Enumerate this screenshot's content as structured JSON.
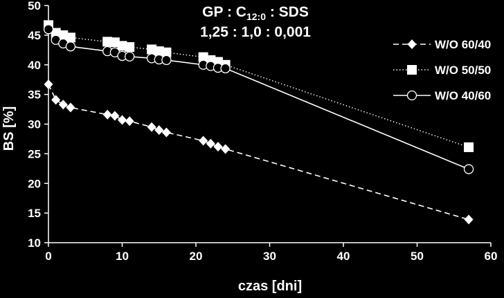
{
  "chart_data": {
    "type": "line",
    "title_line1_main": "GP : C",
    "title_line1_sub": "12:0",
    "title_line1_tail": " : SDS",
    "title_line2": "1,25 : 1,0 : 0,001",
    "xlabel": "czas [dni]",
    "ylabel": "BS [%]",
    "xlim": [
      0,
      60
    ],
    "ylim": [
      10,
      50
    ],
    "xticks": [
      "0",
      "10",
      "20",
      "30",
      "40",
      "50",
      "60"
    ],
    "yticks": [
      "10",
      "15",
      "20",
      "25",
      "30",
      "35",
      "40",
      "45",
      "50"
    ],
    "grid": false,
    "legend_position": "right",
    "series": [
      {
        "name": "W/O 60/40",
        "marker": "diamond",
        "line_style": "dashed",
        "x": [
          0,
          1,
          2,
          3,
          8,
          9,
          10,
          11,
          14,
          15,
          16,
          21,
          22,
          23,
          24,
          57
        ],
        "y": [
          36.7,
          34.1,
          33.3,
          32.8,
          31.6,
          31.4,
          30.7,
          30.5,
          29.5,
          29.0,
          28.6,
          27.2,
          26.7,
          26.2,
          25.8,
          13.9
        ]
      },
      {
        "name": "W/O 50/50",
        "marker": "square",
        "line_style": "dotted",
        "x": [
          0,
          1,
          2,
          3,
          8,
          9,
          10,
          11,
          14,
          15,
          16,
          21,
          22,
          23,
          24,
          57
        ],
        "y": [
          46.7,
          45.4,
          45.0,
          44.6,
          43.9,
          43.8,
          43.2,
          43.0,
          42.6,
          42.3,
          42.1,
          41.3,
          40.8,
          40.5,
          40.0,
          26.1
        ]
      },
      {
        "name": "W/O 40/60",
        "marker": "circle",
        "line_style": "solid",
        "x": [
          0,
          1,
          2,
          3,
          8,
          9,
          10,
          11,
          14,
          15,
          16,
          21,
          22,
          23,
          24,
          57
        ],
        "y": [
          46.0,
          44.2,
          43.6,
          43.1,
          42.3,
          42.1,
          41.5,
          41.4,
          41.1,
          40.9,
          40.8,
          40.0,
          39.8,
          39.5,
          39.4,
          22.4
        ]
      }
    ]
  }
}
